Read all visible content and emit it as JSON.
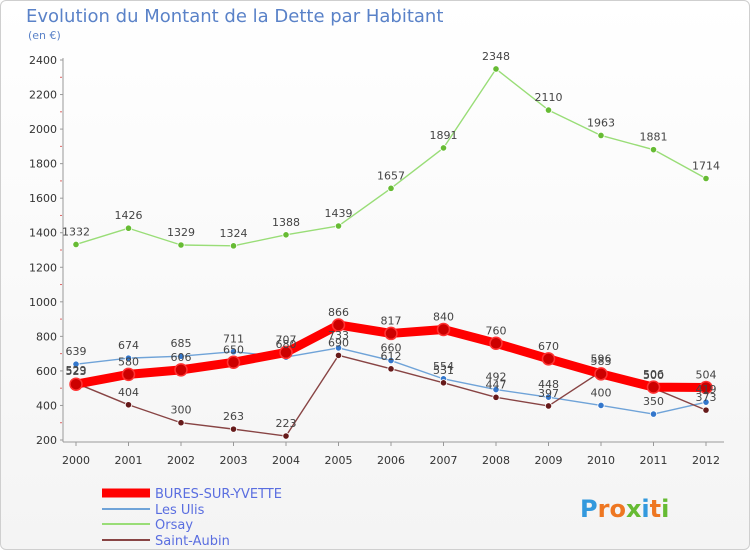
{
  "chart_data": {
    "type": "line",
    "title": "Evolution du Montant de la Dette par Habitant",
    "subtitle": "(en €)",
    "xlabel": "",
    "ylabel": "",
    "ylim": [
      200,
      2400
    ],
    "yticks": [
      200,
      400,
      600,
      800,
      1000,
      1200,
      1400,
      1600,
      1800,
      2000,
      2200,
      2400
    ],
    "grid": false,
    "legend_position": "bottom-left",
    "categories": [
      "2000",
      "2001",
      "2002",
      "2003",
      "2004",
      "2005",
      "2006",
      "2007",
      "2008",
      "2009",
      "2010",
      "2011",
      "2012"
    ],
    "series": [
      {
        "name": "BURES-SUR-YVETTE",
        "color": "#ff0000",
        "marker_color": "#cc0000",
        "values": [
          523,
          580,
          606,
          650,
          707,
          866,
          817,
          840,
          760,
          670,
          583,
          506,
          504
        ]
      },
      {
        "name": "Les Ulis",
        "color": "#6fa3d8",
        "marker_color": "#3377cc",
        "values": [
          639,
          674,
          685,
          711,
          680,
          733,
          660,
          554,
          492,
          448,
          400,
          350,
          419
        ]
      },
      {
        "name": "Orsay",
        "color": "#99dd77",
        "marker_color": "#66bb33",
        "values": [
          1332,
          1426,
          1329,
          1324,
          1388,
          1439,
          1657,
          1891,
          2348,
          2110,
          1963,
          1881,
          1714
        ]
      },
      {
        "name": "Saint-Aubin",
        "color": "#884444",
        "marker_color": "#661a1a",
        "values": [
          529,
          404,
          300,
          263,
          223,
          690,
          612,
          531,
          447,
          397,
          596,
          500,
          373
        ]
      }
    ]
  },
  "logo": {
    "text": "Proxiti"
  }
}
